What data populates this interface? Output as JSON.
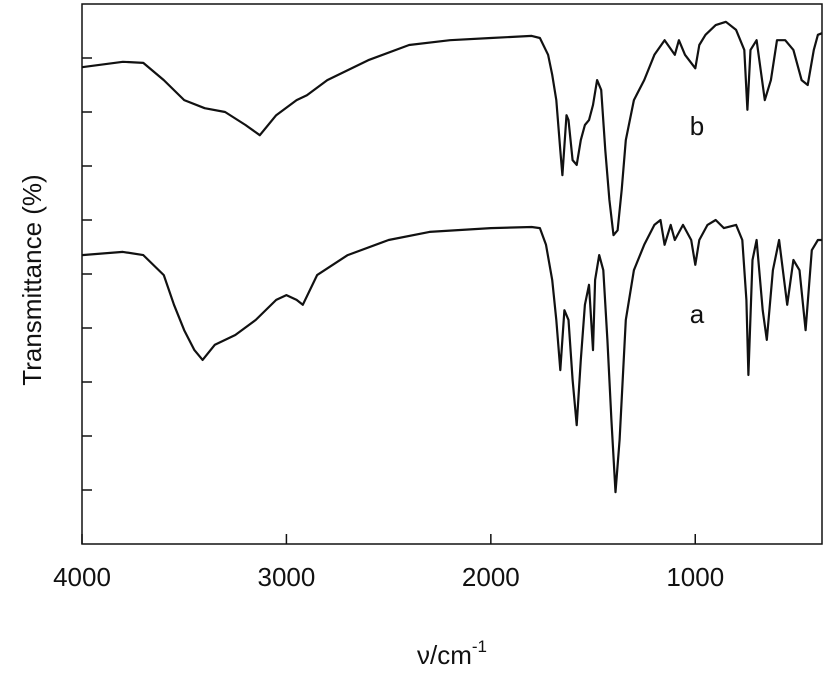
{
  "chart_data": {
    "type": "line",
    "x_label": "ν/cm",
    "x_label_sup": "-1",
    "y_label": "Transmittance (%)",
    "xlim": [
      4000,
      380
    ],
    "xticks": [
      4000,
      3000,
      2000,
      1000
    ],
    "ylim": [
      0,
      100
    ],
    "yticks": [
      10,
      20,
      30,
      40,
      50,
      60,
      70,
      80,
      90
    ],
    "show_ytick_labels": false,
    "series": [
      {
        "name": "b",
        "color": "#111111",
        "x": [
          4000,
          3800,
          3700,
          3600,
          3500,
          3400,
          3300,
          3200,
          3130,
          3050,
          2950,
          2900,
          2800,
          2600,
          2400,
          2200,
          2000,
          1800,
          1760,
          1720,
          1700,
          1680,
          1660,
          1650,
          1630,
          1620,
          1600,
          1580,
          1560,
          1540,
          1520,
          1500,
          1480,
          1460,
          1440,
          1420,
          1400,
          1380,
          1360,
          1340,
          1300,
          1250,
          1200,
          1150,
          1100,
          1080,
          1050,
          1000,
          980,
          950,
          900,
          850,
          800,
          760,
          745,
          730,
          700,
          660,
          630,
          600,
          560,
          520,
          480,
          450,
          420,
          400,
          380
        ],
        "values": [
          88.3,
          89.3,
          89.1,
          85.9,
          82.2,
          80.7,
          80.0,
          77.6,
          75.7,
          79.4,
          82.2,
          83.1,
          85.9,
          89.6,
          92.4,
          93.3,
          93.7,
          94.1,
          93.7,
          90.6,
          86.9,
          82.2,
          72.9,
          68.3,
          79.4,
          78.5,
          71.1,
          70.2,
          74.8,
          77.6,
          78.5,
          81.3,
          85.9,
          84.1,
          72.9,
          63.7,
          57.2,
          58.1,
          65.6,
          74.8,
          82.2,
          85.9,
          90.6,
          93.3,
          90.6,
          93.3,
          90.6,
          88.1,
          92.4,
          94.3,
          96.1,
          96.7,
          95.2,
          91.5,
          80.4,
          91.5,
          93.3,
          82.2,
          85.9,
          93.3,
          93.3,
          91.5,
          85.9,
          85.0,
          91.5,
          94.3,
          94.6
        ]
      },
      {
        "name": "a",
        "color": "#111111",
        "x": [
          4000,
          3800,
          3700,
          3600,
          3550,
          3500,
          3450,
          3410,
          3350,
          3250,
          3150,
          3050,
          3000,
          2950,
          2920,
          2850,
          2700,
          2500,
          2300,
          2000,
          1800,
          1760,
          1730,
          1700,
          1680,
          1660,
          1640,
          1620,
          1600,
          1580,
          1560,
          1540,
          1520,
          1500,
          1490,
          1470,
          1450,
          1430,
          1410,
          1390,
          1370,
          1340,
          1300,
          1250,
          1200,
          1170,
          1150,
          1120,
          1100,
          1060,
          1020,
          1000,
          980,
          940,
          900,
          860,
          800,
          770,
          750,
          740,
          720,
          700,
          670,
          650,
          620,
          590,
          550,
          520,
          490,
          460,
          430,
          400,
          380
        ],
        "values": [
          53.5,
          54.1,
          53.5,
          49.8,
          44.3,
          39.6,
          35.9,
          34.1,
          36.9,
          38.7,
          41.5,
          45.2,
          46.1,
          45.2,
          44.3,
          49.8,
          53.5,
          56.3,
          57.8,
          58.5,
          58.7,
          58.5,
          55.4,
          48.9,
          41.5,
          32.2,
          43.3,
          41.5,
          30.4,
          22.0,
          34.1,
          44.3,
          48.0,
          35.9,
          48.9,
          53.5,
          50.7,
          37.8,
          23.0,
          9.6,
          19.3,
          41.5,
          50.7,
          55.4,
          59.1,
          60.0,
          55.4,
          59.1,
          56.3,
          59.1,
          56.3,
          51.7,
          56.3,
          59.1,
          60.0,
          58.5,
          59.1,
          56.3,
          45.2,
          31.3,
          52.6,
          56.3,
          43.3,
          37.8,
          50.7,
          56.3,
          44.3,
          52.6,
          50.7,
          39.6,
          54.4,
          56.3,
          56.3
        ]
      }
    ]
  }
}
